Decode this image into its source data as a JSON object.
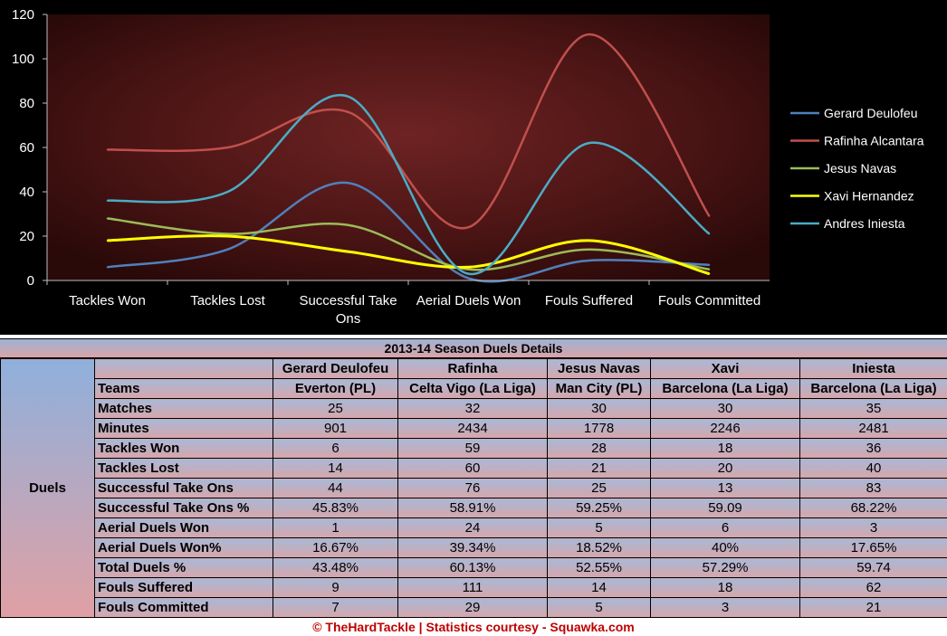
{
  "chart_data": {
    "type": "line",
    "categories": [
      "Tackles Won",
      "Tackles Lost",
      "Successful Take Ons",
      "Aerial Duels Won",
      "Fouls Suffered",
      "Fouls Committed"
    ],
    "ylim": [
      0,
      120
    ],
    "yticks": [
      0,
      20,
      40,
      60,
      80,
      100,
      120
    ],
    "grid": false,
    "legend": "right",
    "series": [
      {
        "name": "Gerard Deulofeu",
        "color": "#4f81bd",
        "values": [
          6,
          14,
          44,
          1,
          9,
          7
        ]
      },
      {
        "name": "Rafinha Alcantara",
        "color": "#c0504d",
        "values": [
          59,
          60,
          76,
          24,
          111,
          29
        ]
      },
      {
        "name": "Jesus Navas",
        "color": "#9bbb59",
        "values": [
          28,
          21,
          25,
          5,
          14,
          5
        ]
      },
      {
        "name": "Xavi Hernandez",
        "color": "#ffff00",
        "values": [
          18,
          20,
          13,
          6,
          18,
          3
        ]
      },
      {
        "name": "Andres Iniesta",
        "color": "#4bacc6",
        "values": [
          36,
          40,
          83,
          3,
          62,
          21
        ]
      }
    ]
  },
  "table": {
    "title": "2013-14 Season Duels Details",
    "group_label": "Duels",
    "players": [
      "Gerard Deulofeu",
      "Rafinha",
      "Jesus Navas",
      "Xavi",
      "Iniesta"
    ],
    "rows": [
      {
        "label": "Teams",
        "values": [
          "Everton (PL)",
          "Celta Vigo (La Liga)",
          "Man City (PL)",
          "Barcelona (La Liga)",
          "Barcelona (La Liga)"
        ]
      },
      {
        "label": "Matches",
        "values": [
          "25",
          "32",
          "30",
          "30",
          "35"
        ]
      },
      {
        "label": "Minutes",
        "values": [
          "901",
          "2434",
          "1778",
          "2246",
          "2481"
        ]
      },
      {
        "label": "Tackles Won",
        "values": [
          "6",
          "59",
          "28",
          "18",
          "36"
        ]
      },
      {
        "label": "Tackles Lost",
        "values": [
          "14",
          "60",
          "21",
          "20",
          "40"
        ]
      },
      {
        "label": "Successful Take Ons",
        "values": [
          "44",
          "76",
          "25",
          "13",
          "83"
        ]
      },
      {
        "label": "Successful Take Ons %",
        "values": [
          "45.83%",
          "58.91%",
          "59.25%",
          "59.09",
          "68.22%"
        ]
      },
      {
        "label": "Aerial Duels Won",
        "values": [
          "1",
          "24",
          "5",
          "6",
          "3"
        ]
      },
      {
        "label": "Aerial Duels Won%",
        "values": [
          "16.67%",
          "39.34%",
          "18.52%",
          "40%",
          "17.65%"
        ]
      },
      {
        "label": "Total Duels %",
        "values": [
          "43.48%",
          "60.13%",
          "52.55%",
          "57.29%",
          "59.74"
        ]
      },
      {
        "label": "Fouls Suffered",
        "values": [
          "9",
          "111",
          "14",
          "18",
          "62"
        ]
      },
      {
        "label": "Fouls Committed",
        "values": [
          "7",
          "29",
          "5",
          "3",
          "21"
        ]
      }
    ]
  },
  "footer": "© TheHardTackle | Statistics courtesy - Squawka.com"
}
